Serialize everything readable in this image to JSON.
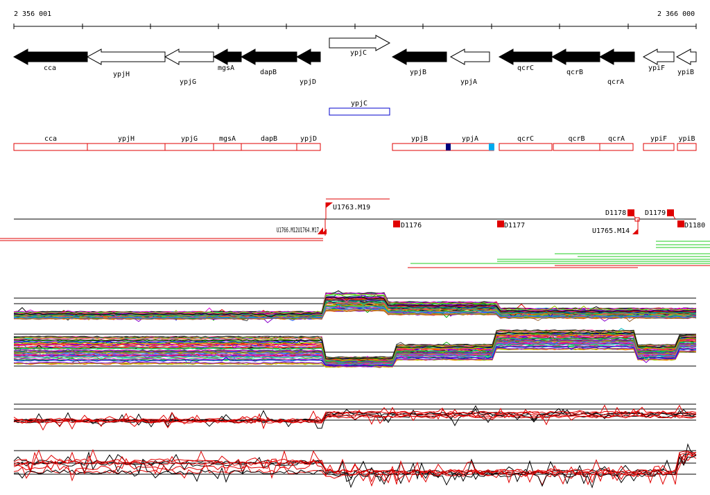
{
  "coordinates": {
    "start_label": "2 356 001",
    "end_label": "2 366 000"
  },
  "genes": [
    {
      "name": "cca",
      "strand": "-",
      "fill": "black"
    },
    {
      "name": "ypjH",
      "strand": "-",
      "fill": "white"
    },
    {
      "name": "ypjG",
      "strand": "-",
      "fill": "white"
    },
    {
      "name": "mgsA",
      "strand": "-",
      "fill": "black"
    },
    {
      "name": "dapB",
      "strand": "-",
      "fill": "black"
    },
    {
      "name": "ypjD",
      "strand": "-",
      "fill": "black"
    },
    {
      "name": "ypjC",
      "strand": "+",
      "fill": "white"
    },
    {
      "name": "ypjB",
      "strand": "-",
      "fill": "black"
    },
    {
      "name": "ypjA",
      "strand": "-",
      "fill": "white"
    },
    {
      "name": "qcrC",
      "strand": "-",
      "fill": "black"
    },
    {
      "name": "qcrB",
      "strand": "-",
      "fill": "black"
    },
    {
      "name": "qcrA",
      "strand": "-",
      "fill": "black"
    },
    {
      "name": "ypiF",
      "strand": "-",
      "fill": "white"
    },
    {
      "name": "ypiB",
      "strand": "-",
      "fill": "white"
    }
  ],
  "forward_boxes": [
    {
      "name": "ypjC"
    }
  ],
  "reverse_boxes": [
    {
      "name": "cca"
    },
    {
      "name": "ypjH"
    },
    {
      "name": "ypjG"
    },
    {
      "name": "mgsA"
    },
    {
      "name": "dapB"
    },
    {
      "name": "ypjD"
    },
    {
      "name": "ypjB"
    },
    {
      "name": "ypjA"
    },
    {
      "name": "qcrC"
    },
    {
      "name": "qcrB"
    },
    {
      "name": "qcrA"
    },
    {
      "name": "ypiF"
    },
    {
      "name": "ypiB"
    }
  ],
  "features": {
    "U1763": "U1763.M19",
    "D1176": "D1176",
    "D1177": "D1177",
    "D1178": "D1178",
    "D1179": "D1179",
    "D1180": "D1180",
    "U1765": "U1765.M14",
    "overlap": "U1766.M12U1764.M17"
  },
  "colors": {
    "black": "#000000",
    "red": "#e00000",
    "green": "#22cc22",
    "blue_box": "#0000cc",
    "navy_mark": "#00007a",
    "cyan_mark": "#00aaee"
  },
  "icons": [
    "gene-arrow-icon",
    "flag-icon",
    "red-square-icon"
  ]
}
